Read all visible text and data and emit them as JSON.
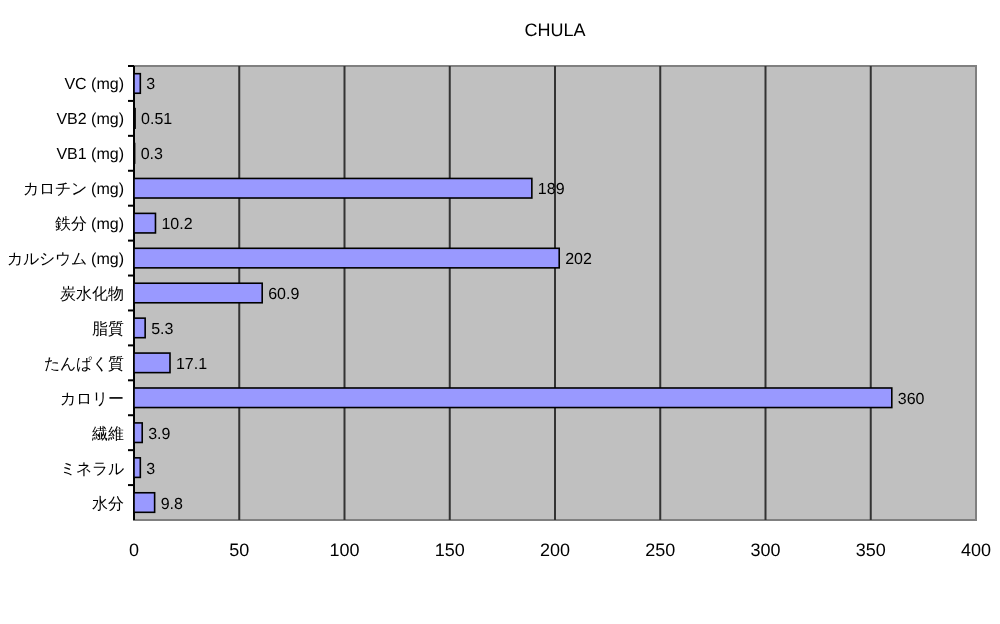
{
  "chart_data": {
    "type": "bar",
    "orientation": "horizontal",
    "title": "CHULA",
    "categories": [
      "VC (mg)",
      "VB2 (mg)",
      "VB1 (mg)",
      "カロチン (mg)",
      "鉄分 (mg)",
      "カルシウム (mg)",
      "炭水化物",
      "脂質",
      "たんぱく質",
      "カロリー",
      "繊維",
      "ミネラル",
      "水分"
    ],
    "values": [
      3,
      0.51,
      0.3,
      189,
      10.2,
      202,
      60.9,
      5.3,
      17.1,
      360,
      3.9,
      3,
      9.8
    ],
    "color": "#9999ff",
    "xlim": [
      0,
      400
    ],
    "xticks": [
      0,
      50,
      100,
      150,
      200,
      250,
      300,
      350,
      400
    ],
    "grid": "x",
    "data_labels": true
  }
}
